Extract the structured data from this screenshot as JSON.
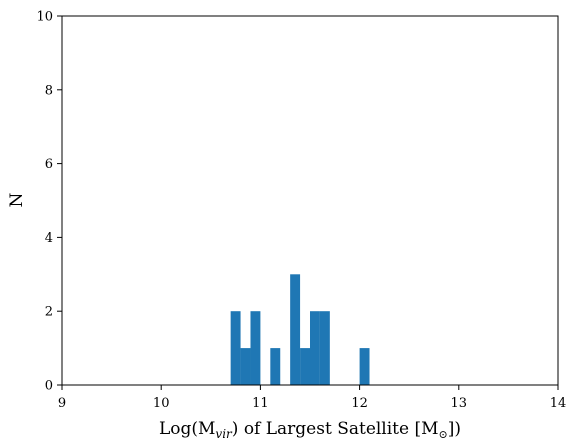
{
  "chart_data": {
    "type": "bar",
    "bin_width": 0.1,
    "bins": [
      {
        "x0": 10.7,
        "x1": 10.8,
        "count": 2
      },
      {
        "x0": 10.8,
        "x1": 10.9,
        "count": 1
      },
      {
        "x0": 10.9,
        "x1": 11.0,
        "count": 2
      },
      {
        "x0": 11.1,
        "x1": 11.2,
        "count": 1
      },
      {
        "x0": 11.3,
        "x1": 11.4,
        "count": 3
      },
      {
        "x0": 11.4,
        "x1": 11.5,
        "count": 1
      },
      {
        "x0": 11.5,
        "x1": 11.6,
        "count": 2
      },
      {
        "x0": 11.6,
        "x1": 11.7,
        "count": 2
      },
      {
        "x0": 12.0,
        "x1": 12.1,
        "count": 1
      }
    ],
    "xlim": [
      9,
      14
    ],
    "ylim": [
      0,
      10
    ],
    "xticks": [
      "9",
      "10",
      "11",
      "12",
      "13",
      "14"
    ],
    "yticks": [
      "0",
      "2",
      "4",
      "6",
      "8",
      "10"
    ],
    "xlabel": "Log(M_vir) of Largest Satellite [M_⊙])",
    "xlabel_parts": {
      "pre": "Log(M",
      "sub": "vir",
      "mid": ") of Largest Satellite [M",
      "sub2": "⊙",
      "post": "])"
    },
    "ylabel": "N",
    "grid": false,
    "bar_color": "#1f77b4"
  }
}
